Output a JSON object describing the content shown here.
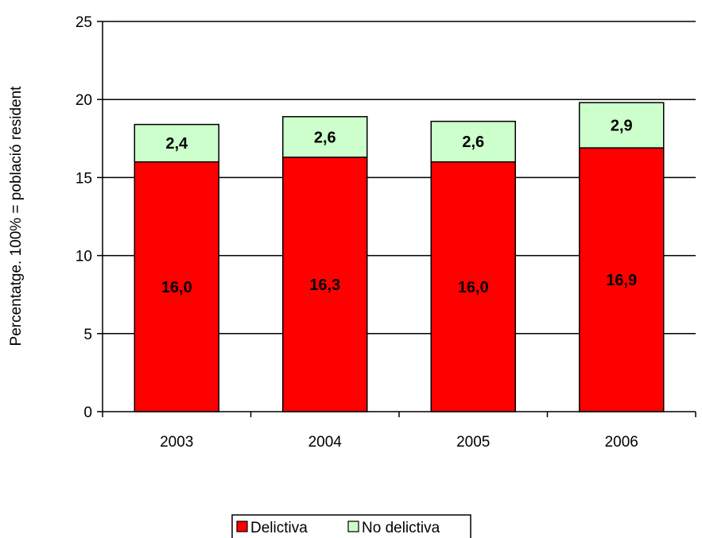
{
  "chart_data": {
    "type": "bar",
    "stacked": true,
    "title": "",
    "xlabel": "",
    "ylabel": "Percentatge. 100% = població resident",
    "ylim": [
      0,
      25
    ],
    "yticks": [
      "0",
      "5",
      "10",
      "15",
      "20",
      "25"
    ],
    "ytick_values": [
      0,
      5,
      10,
      15,
      20,
      25
    ],
    "grid": true,
    "legend_position": "bottom",
    "categories": [
      "2003",
      "2004",
      "2005",
      "2006"
    ],
    "series": [
      {
        "name": "Delictiva",
        "color": "#ff0000",
        "values": [
          16.0,
          16.3,
          16.0,
          16.9
        ],
        "labels": [
          "16,0",
          "16,3",
          "16,0",
          "16,9"
        ]
      },
      {
        "name": "No delictiva",
        "color": "#ccffcc",
        "values": [
          2.4,
          2.6,
          2.6,
          2.9
        ],
        "labels": [
          "2,4",
          "2,6",
          "2,6",
          "2,9"
        ]
      }
    ]
  }
}
